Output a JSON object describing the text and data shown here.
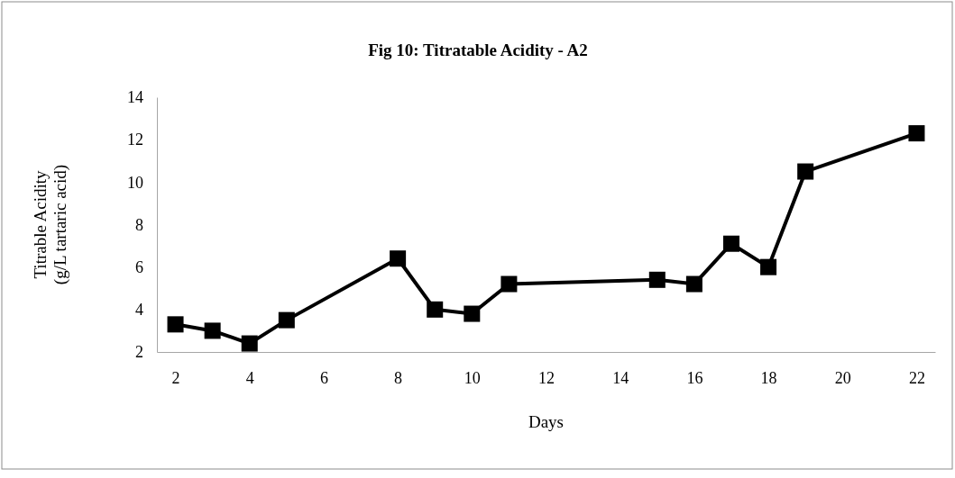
{
  "chart_data": {
    "type": "line",
    "title": "Fig 10: Titratable Acidity - A2",
    "xlabel": "Days",
    "ylabel": "Titrable Acidity\n(g/L tartaric acid)",
    "x": [
      2,
      3,
      4,
      5,
      8,
      9,
      10,
      11,
      15,
      16,
      17,
      18,
      19,
      22
    ],
    "series": [
      {
        "color": "#000000",
        "values": [
          3.3,
          3.0,
          2.4,
          3.5,
          6.4,
          4.0,
          3.8,
          5.2,
          5.4,
          5.2,
          7.1,
          6.0,
          10.5,
          12.3
        ]
      }
    ],
    "xlim": [
      1.5,
      22.5
    ],
    "xticks": [
      2,
      4,
      6,
      8,
      10,
      12,
      14,
      16,
      18,
      20,
      22
    ],
    "ylim": [
      2,
      14
    ],
    "yticks": [
      2,
      4,
      6,
      8,
      10,
      12,
      14
    ],
    "grid": false,
    "marker": "square",
    "line_style": "solid"
  }
}
